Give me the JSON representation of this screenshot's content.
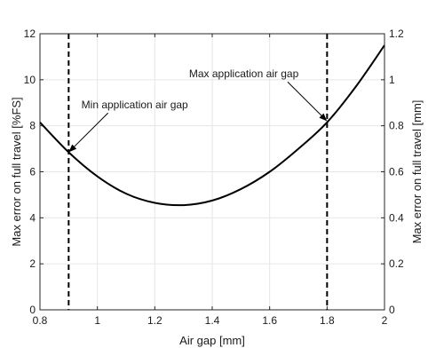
{
  "chart_data": {
    "type": "line",
    "xlabel": "Air gap [mm]",
    "ylabel": "Max error on full travel [%FS]",
    "ylabel_right": "Max error on full travel [mm]",
    "xlim": [
      0.8,
      2
    ],
    "ylim": [
      0,
      12
    ],
    "ylim_right": [
      0,
      1.2
    ],
    "x_ticks": [
      "0.8",
      "1",
      "1.2",
      "1.4",
      "1.6",
      "1.8",
      "2"
    ],
    "y_ticks": [
      "0",
      "2",
      "4",
      "6",
      "8",
      "10",
      "12"
    ],
    "y_ticks_right": [
      "0",
      "0.2",
      "0.4",
      "0.6",
      "0.8",
      "1",
      "1.2"
    ],
    "grid": true,
    "series": [
      {
        "name": "",
        "color": "#000000",
        "x": [
          0.8,
          0.9,
          1.0,
          1.1,
          1.2,
          1.3,
          1.4,
          1.5,
          1.6,
          1.7,
          1.8,
          1.9,
          2.0
        ],
        "y": [
          8.15,
          6.85,
          5.8,
          5.05,
          4.65,
          4.55,
          4.75,
          5.25,
          6.0,
          7.0,
          8.15,
          9.7,
          11.5
        ]
      }
    ],
    "vlines": [
      {
        "x": 0.9,
        "style": "dashed"
      },
      {
        "x": 1.8,
        "style": "dashed"
      }
    ],
    "annotations": [
      {
        "text": "Min application air gap",
        "point": [
          0.9,
          6.85
        ],
        "text_pos": [
          1.13,
          8.75
        ]
      },
      {
        "text": "Max application air gap",
        "point": [
          1.8,
          8.2
        ],
        "text_pos": [
          1.51,
          10.1
        ]
      }
    ]
  }
}
